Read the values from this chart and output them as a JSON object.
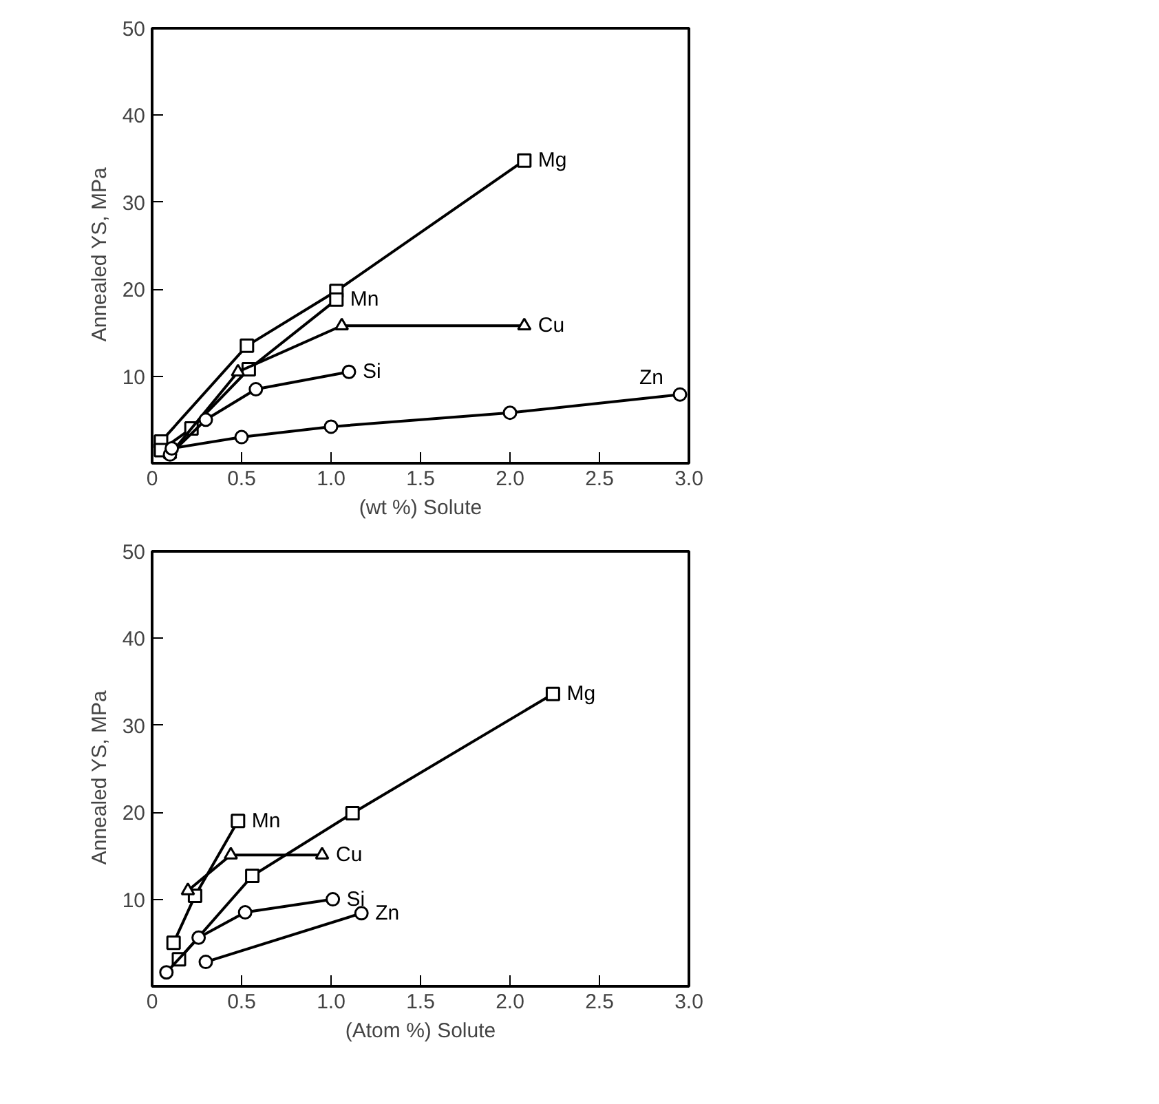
{
  "chart_data": [
    {
      "type": "line",
      "xlabel": "(wt %) Solute",
      "ylabel": "Annealed    YS, MPa",
      "xlim": [
        0,
        3
      ],
      "ylim": [
        0,
        50
      ],
      "xticks": [
        0,
        0.5,
        {
          "value": 1.0,
          "label": "1.0"
        },
        1.5,
        {
          "value": 2.0,
          "label": "2.0"
        },
        2.5,
        {
          "value": 3.0,
          "label": "3.0"
        }
      ],
      "yticks": [
        {
          "value": 0,
          "label": null
        },
        10,
        20,
        30,
        40,
        50
      ],
      "grid": false,
      "legend": false,
      "series": [
        {
          "name": "Mg",
          "color": "#000000",
          "marker": "square",
          "x": [
            0.05,
            0.53,
            1.03,
            2.08
          ],
          "values": [
            2.5,
            13.5,
            19.8,
            34.8
          ]
        },
        {
          "name": "Mn",
          "color": "#000000",
          "marker": "square",
          "x": [
            0.05,
            0.22,
            0.54,
            1.03
          ],
          "values": [
            1.5,
            4,
            10.8,
            18.8
          ]
        },
        {
          "name": "Cu",
          "color": "#000000",
          "marker": "triangle",
          "x": [
            0.1,
            0.48,
            1.06,
            2.08
          ],
          "values": [
            1,
            10.5,
            15.8,
            15.8
          ]
        },
        {
          "name": "Si",
          "color": "#000000",
          "marker": "circle",
          "x": [
            0.1,
            0.3,
            0.58,
            1.1
          ],
          "values": [
            1,
            5,
            8.5,
            10.5
          ]
        },
        {
          "name": "Zn",
          "color": "#000000",
          "marker": "circle",
          "x": [
            0.11,
            0.5,
            1.0,
            2.0,
            2.95
          ],
          "values": [
            1.7,
            3,
            4.2,
            5.8,
            7.9
          ]
        }
      ]
    },
    {
      "type": "line",
      "xlabel": "(Atom %) Solute",
      "ylabel": "Annealed    YS, MPa",
      "xlim": [
        0,
        3
      ],
      "ylim": [
        0,
        50
      ],
      "xticks": [
        0,
        0.5,
        {
          "value": 1.0,
          "label": "1.0"
        },
        1.5,
        {
          "value": 2.0,
          "label": "2.0"
        },
        2.5,
        {
          "value": 3.0,
          "label": "3.0"
        }
      ],
      "yticks": [
        {
          "value": 0,
          "label": null
        },
        10,
        20,
        30,
        40,
        50
      ],
      "grid": false,
      "legend": false,
      "series": [
        {
          "name": "Mg",
          "color": "#000000",
          "marker": "square",
          "x": [
            0.15,
            0.56,
            1.12,
            2.24
          ],
          "values": [
            3.1,
            12.7,
            19.9,
            33.6
          ]
        },
        {
          "name": "Mn",
          "color": "#000000",
          "marker": "square",
          "x": [
            0.12,
            0.24,
            0.48
          ],
          "values": [
            5,
            10.4,
            19
          ]
        },
        {
          "name": "Cu",
          "color": "#000000",
          "marker": "triangle",
          "x": [
            0.2,
            0.44,
            0.95
          ],
          "values": [
            11,
            15.1,
            15.1
          ]
        },
        {
          "name": "Si",
          "color": "#000000",
          "marker": "circle",
          "x": [
            0.08,
            0.26,
            0.52,
            1.01
          ],
          "values": [
            1.6,
            5.6,
            8.5,
            10
          ]
        },
        {
          "name": "Zn",
          "color": "#000000",
          "marker": "circle",
          "x": [
            0.3,
            1.17
          ],
          "values": [
            2.8,
            8.4
          ]
        }
      ]
    }
  ]
}
